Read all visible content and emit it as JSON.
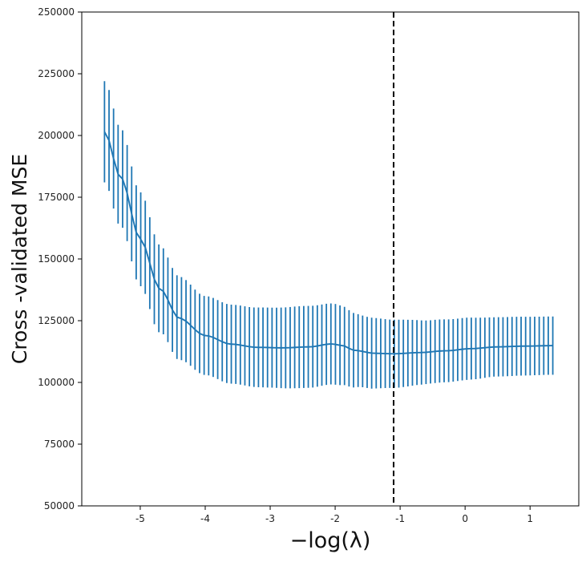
{
  "chart_data": {
    "type": "line",
    "title": "",
    "xlabel": "−log(λ)",
    "ylabel": "Cross -validated MSE",
    "xlim": [
      -5.9,
      1.75
    ],
    "ylim": [
      50000,
      250000
    ],
    "x_ticks": [
      -5,
      -4,
      -3,
      -2,
      -1,
      0,
      1
    ],
    "x_tick_labels": [
      "-5",
      "-4",
      "-3",
      "-2",
      "-1",
      "0",
      "1"
    ],
    "y_ticks": [
      50000,
      75000,
      100000,
      125000,
      150000,
      175000,
      200000,
      225000,
      250000
    ],
    "y_tick_labels": [
      "50000",
      "75000",
      "100000",
      "125000",
      "150000",
      "175000",
      "200000",
      "225000",
      "250000"
    ],
    "grid": false,
    "legend": "none",
    "line_color": "#1f77b4",
    "vline": {
      "x": -1.1,
      "style": "dashed",
      "color": "#000000"
    },
    "x_range": [
      -5.55,
      1.35
    ],
    "n_points": 100,
    "mean_knots": [
      [
        -5.55,
        201500
      ],
      [
        -5.3,
        183000
      ],
      [
        -5.0,
        158000
      ],
      [
        -4.7,
        138000
      ],
      [
        -4.4,
        126000
      ],
      [
        -4.0,
        119000
      ],
      [
        -3.6,
        115500
      ],
      [
        -3.2,
        114200
      ],
      [
        -2.8,
        114000
      ],
      [
        -2.4,
        114400
      ],
      [
        -2.05,
        115600
      ],
      [
        -1.9,
        115000
      ],
      [
        -1.7,
        113000
      ],
      [
        -1.4,
        111800
      ],
      [
        -1.1,
        111600
      ],
      [
        -0.7,
        112100
      ],
      [
        -0.3,
        112800
      ],
      [
        0.1,
        113700
      ],
      [
        0.5,
        114400
      ],
      [
        0.9,
        114700
      ],
      [
        1.35,
        114900
      ]
    ],
    "err_knots": [
      [
        -5.55,
        20500
      ],
      [
        -5.0,
        19000
      ],
      [
        -4.5,
        17000
      ],
      [
        -4.0,
        16000
      ],
      [
        -3.5,
        16000
      ],
      [
        -3.0,
        16200
      ],
      [
        -2.5,
        16600
      ],
      [
        -2.05,
        16400
      ],
      [
        -1.5,
        14400
      ],
      [
        -1.1,
        13800
      ],
      [
        -0.5,
        12800
      ],
      [
        0.0,
        12600
      ],
      [
        0.5,
        12000
      ],
      [
        1.35,
        11800
      ]
    ]
  }
}
